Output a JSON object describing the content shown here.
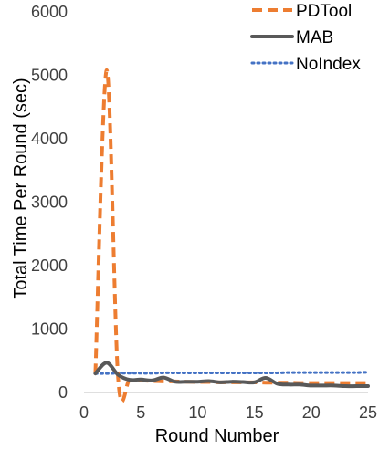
{
  "chart_data": {
    "type": "line",
    "xlabel": "Round Number",
    "ylabel": "Total Time Per Round (sec)",
    "xlim": [
      0,
      25
    ],
    "ylim": [
      0,
      6000
    ],
    "x_ticks": [
      "0",
      "5",
      "10",
      "15",
      "20",
      "25"
    ],
    "y_ticks": [
      "0",
      "1000",
      "2000",
      "3000",
      "4000",
      "5000",
      "6000"
    ],
    "grid": false,
    "legend_position": "top-right",
    "x": [
      1,
      2,
      3,
      4,
      5,
      6,
      7,
      8,
      9,
      10,
      11,
      12,
      13,
      14,
      15,
      16,
      17,
      18,
      19,
      20,
      21,
      22,
      23,
      24,
      25
    ],
    "series": [
      {
        "name": "PDTool",
        "color": "#ed7d31",
        "dash": "dashed",
        "values": [
          300,
          5080,
          230,
          190,
          190,
          180,
          175,
          175,
          170,
          165,
          165,
          160,
          160,
          160,
          160,
          155,
          155,
          155,
          150,
          150,
          150,
          150,
          150,
          150,
          150
        ]
      },
      {
        "name": "MAB",
        "color": "#595959",
        "dash": "solid",
        "values": [
          300,
          470,
          280,
          200,
          205,
          190,
          235,
          170,
          170,
          170,
          180,
          160,
          170,
          165,
          160,
          230,
          140,
          125,
          125,
          110,
          110,
          110,
          100,
          100,
          100
        ]
      },
      {
        "name": "NoIndex",
        "color": "#4472c4",
        "dash": "dotted",
        "values": [
          300,
          300,
          305,
          305,
          305,
          305,
          310,
          310,
          310,
          310,
          310,
          310,
          310,
          310,
          310,
          310,
          310,
          315,
          315,
          315,
          315,
          315,
          315,
          315,
          320
        ]
      }
    ]
  }
}
